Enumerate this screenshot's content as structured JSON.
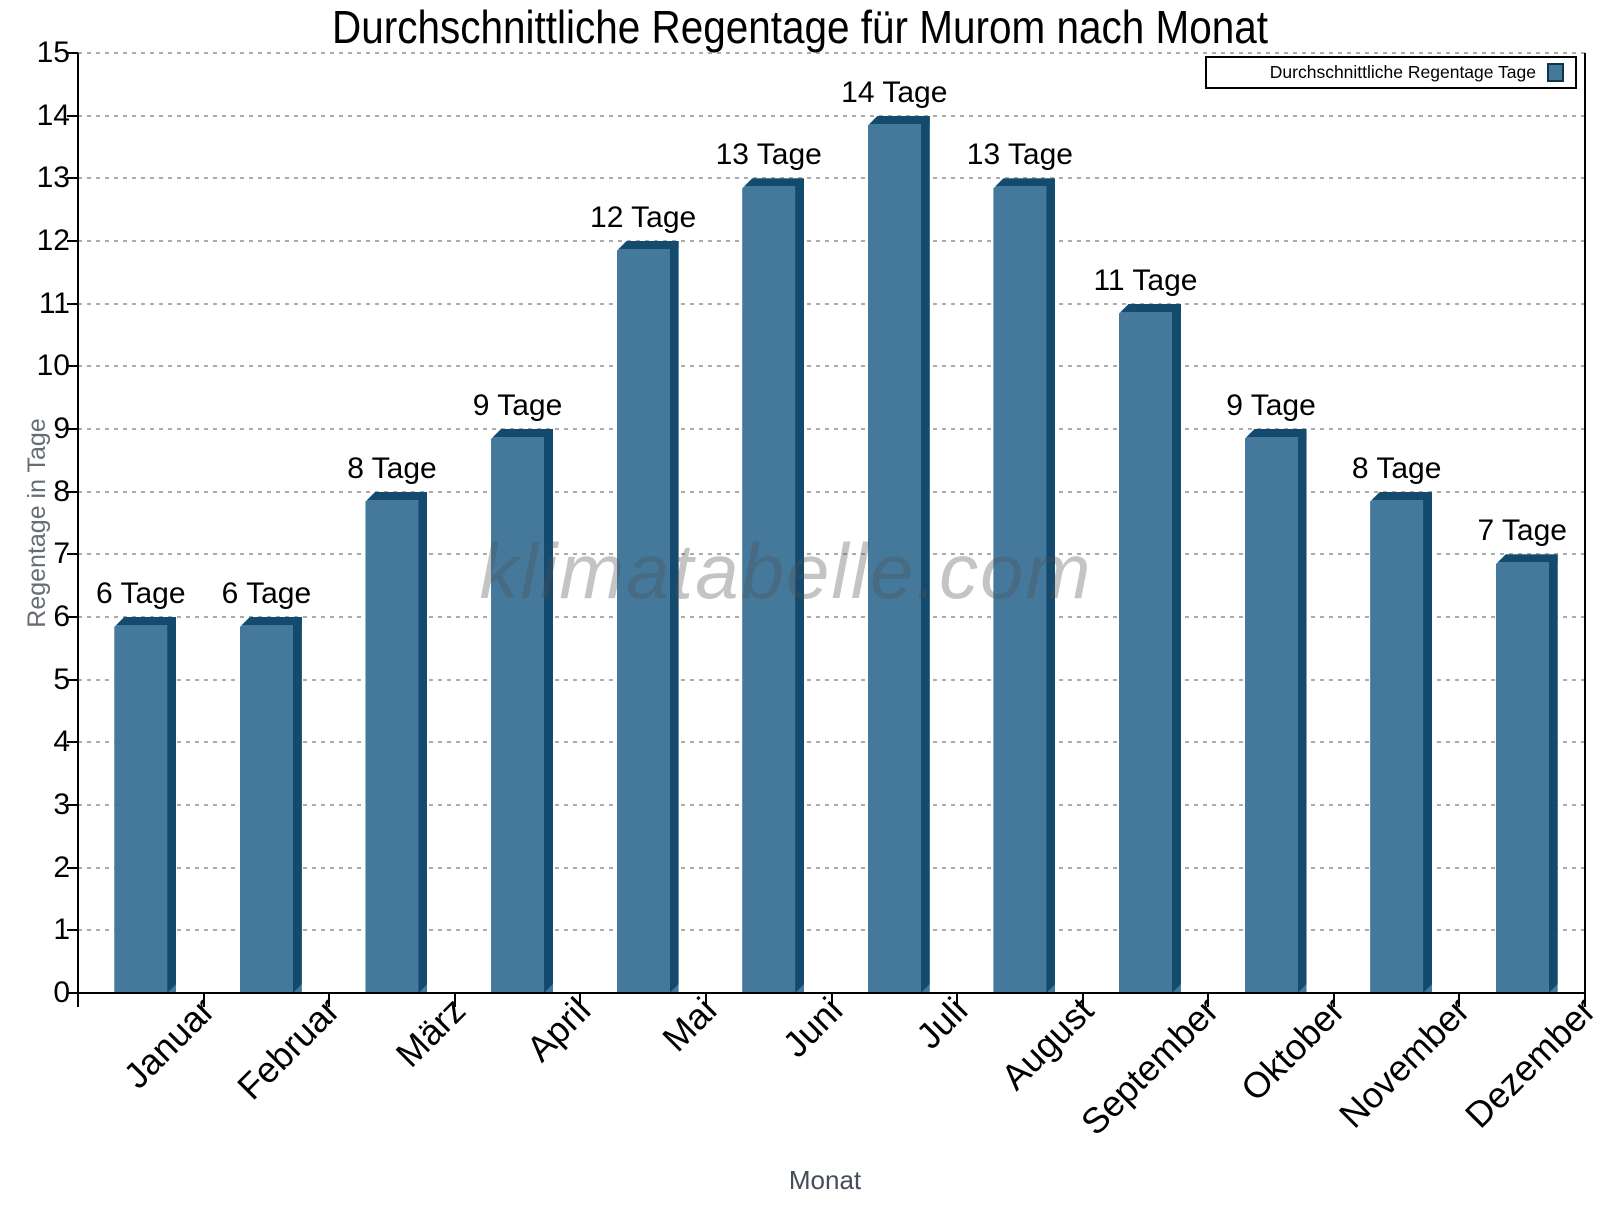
{
  "chart_data": {
    "type": "bar",
    "title": "Durchschnittliche Regentage für Murom nach Monat",
    "categories": [
      "Januar",
      "Februar",
      "März",
      "April",
      "Mai",
      "Juni",
      "Juli",
      "August",
      "September",
      "Oktober",
      "November",
      "Dezember"
    ],
    "values": [
      6,
      6,
      8,
      9,
      12,
      13,
      14,
      13,
      11,
      9,
      8,
      7
    ],
    "bar_labels": [
      "6 Tage",
      "6 Tage",
      "8 Tage",
      "9 Tage",
      "12 Tage",
      "13 Tage",
      "14 Tage",
      "13 Tage",
      "11 Tage",
      "9 Tage",
      "8 Tage",
      "7 Tage"
    ],
    "xlabel": "Monat",
    "ylabel": "Regentage in Tage",
    "ylim": [
      0,
      15
    ],
    "ytick_step": 1,
    "grid": "horizontal-dashed",
    "legend_label": "Durchschnittliche Regentage Tage",
    "legend_position": "top-right",
    "watermark": "klimatabelle.com",
    "colors": {
      "bar_face": "#44799C",
      "bar_shade": "#134A6D",
      "grid": "#ababab",
      "axis": "#000000",
      "tick_label": "#000000",
      "y_axis_title": "#676d74",
      "x_axis_title": "#454e58",
      "watermark_gray": "#505050"
    }
  }
}
